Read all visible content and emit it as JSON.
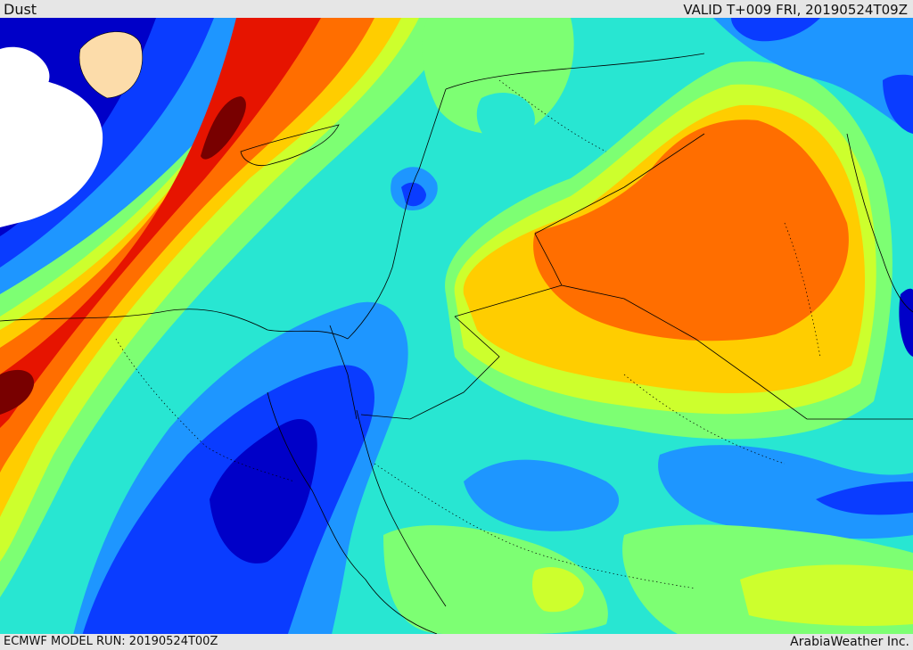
{
  "header": {
    "title": "Dust",
    "valid": "VALID T+009 FRI, 20190524T09Z"
  },
  "footer": {
    "model_run": "ECMWF MODEL RUN: 20190524T00Z",
    "brand": "ArabiaWeather Inc."
  },
  "map": {
    "variable": "dust",
    "palette": [
      "#0000c8",
      "#0a3cff",
      "#1e96ff",
      "#28e6d2",
      "#7dff73",
      "#cdff2d",
      "#ffcd00",
      "#ff6e00",
      "#e61400",
      "#780000"
    ],
    "land_unforecast_color": "#fcdcaa",
    "borders_style": "dotted",
    "coastline_color": "#000000"
  }
}
